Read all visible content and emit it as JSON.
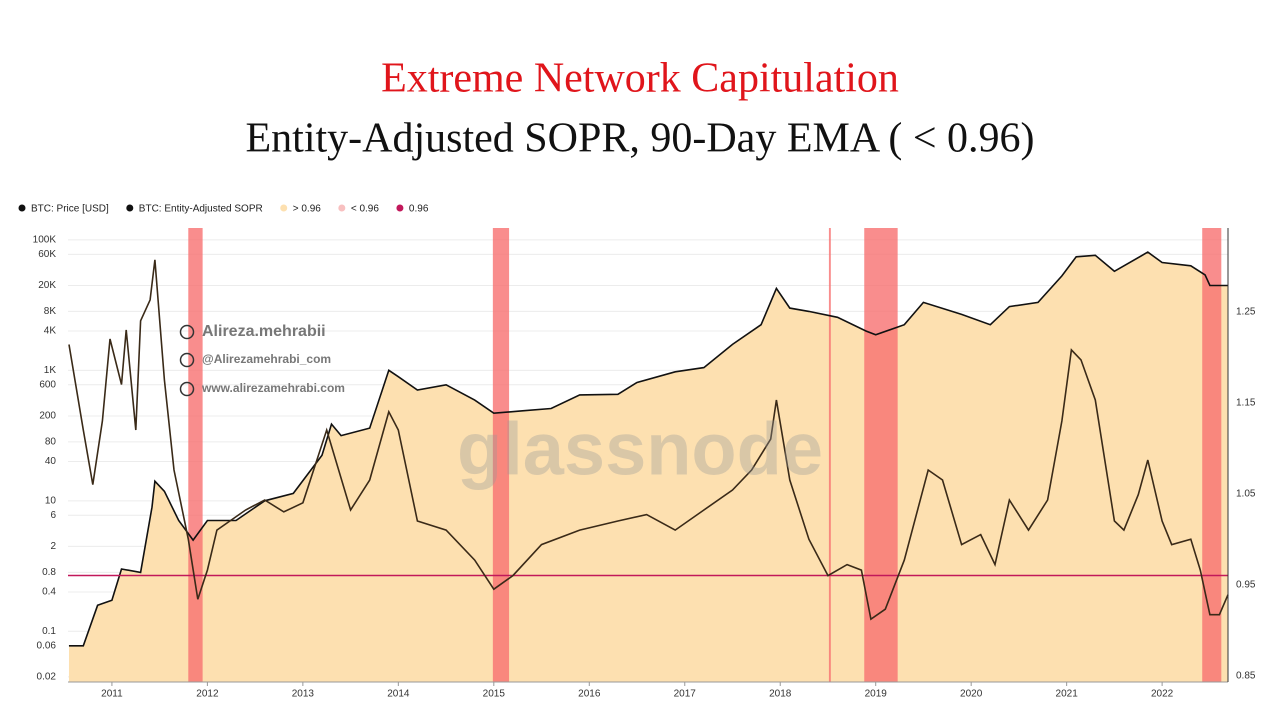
{
  "chart_data": {
    "type": "line",
    "title": "Extreme Network Capitulation",
    "subtitle": "Entity-Adjusted SOPR, 90-Day EMA ( < 0.96)",
    "legend": [
      "BTC: Price [USD]",
      "BTC: Entity-Adjusted SOPR",
      "> 0.96",
      "< 0.96",
      "0.96"
    ],
    "legend_colors": [
      "#111111",
      "#111111",
      "#fde0b0",
      "#f8c0c0",
      "#c2185b"
    ],
    "watermarks": [
      "Alireza.mehrabii",
      "@Alirezamehrabi_com",
      "www.alirezamehrabi.com",
      "glassnode"
    ],
    "log_y": true,
    "xlim": [
      2010.54,
      2022.69
    ],
    "xticks": [
      2011,
      2012,
      2013,
      2014,
      2015,
      2016,
      2017,
      2018,
      2019,
      2020,
      2021,
      2022
    ],
    "ylim": [
      0.0167,
      152000
    ],
    "yticks": [
      0.02,
      0.06,
      0.1,
      0.4,
      0.8,
      2,
      6,
      10,
      40,
      80,
      200,
      600,
      {
        "value": 1000,
        "label": "1K"
      },
      {
        "value": 4000,
        "label": "4K"
      },
      {
        "value": 8000,
        "label": "8K"
      },
      {
        "value": 20000,
        "label": "20K"
      },
      {
        "value": 60000,
        "label": "60K"
      },
      {
        "value": 100000,
        "label": "100K"
      }
    ],
    "y2lim": [
      0.843,
      1.342
    ],
    "y2ticks": [
      0.85,
      0.95,
      1.05,
      1.15,
      1.25
    ],
    "threshold": 0.96,
    "threshold_color": "#c2185b",
    "area_color": "#fde0b0",
    "band_color": "#f77070",
    "bands": [
      [
        2011.8,
        2011.95
      ],
      [
        2014.99,
        2015.16
      ],
      [
        2018.51,
        2018.53
      ],
      [
        2018.88,
        2019.23
      ],
      [
        2022.42,
        2022.62
      ]
    ],
    "series": [
      {
        "name": "BTC: Price [USD]",
        "color": "#111111",
        "x": [
          2010.55,
          2010.7,
          2010.85,
          2011.0,
          2011.1,
          2011.3,
          2011.42,
          2011.45,
          2011.55,
          2011.7,
          2011.85,
          2012.0,
          2012.3,
          2012.6,
          2012.9,
          2013.2,
          2013.3,
          2013.4,
          2013.7,
          2013.9,
          2014.0,
          2014.2,
          2014.5,
          2014.8,
          2015.0,
          2015.3,
          2015.6,
          2015.9,
          2016.3,
          2016.5,
          2016.9,
          2017.2,
          2017.5,
          2017.8,
          2017.96,
          2018.1,
          2018.3,
          2018.6,
          2018.9,
          2019.0,
          2019.3,
          2019.5,
          2019.9,
          2020.2,
          2020.4,
          2020.7,
          2020.95,
          2021.1,
          2021.3,
          2021.5,
          2021.85,
          2022.0,
          2022.3,
          2022.45,
          2022.5,
          2022.69
        ],
        "values": [
          0.06,
          0.06,
          0.25,
          0.3,
          0.9,
          0.8,
          8,
          20,
          14,
          5,
          2.5,
          5,
          5,
          10,
          13,
          50,
          150,
          100,
          130,
          1000,
          800,
          500,
          600,
          350,
          220,
          240,
          260,
          420,
          430,
          650,
          950,
          1100,
          2500,
          5000,
          18000,
          9000,
          8000,
          6500,
          4000,
          3500,
          5000,
          11000,
          7200,
          5000,
          9500,
          11000,
          28000,
          55000,
          58000,
          33000,
          65000,
          45000,
          40000,
          29000,
          20000,
          20000
        ]
      },
      {
        "name": "BTC: Entity-Adjusted SOPR",
        "color": "#3a2a18",
        "axis": "y2",
        "x": [
          2010.55,
          2010.7,
          2010.8,
          2010.9,
          2010.98,
          2011.1,
          2011.15,
          2011.25,
          2011.3,
          2011.4,
          2011.45,
          2011.55,
          2011.65,
          2011.8,
          2011.9,
          2012.0,
          2012.1,
          2012.4,
          2012.6,
          2012.8,
          2013.0,
          2013.25,
          2013.5,
          2013.7,
          2013.9,
          2014.0,
          2014.2,
          2014.5,
          2014.8,
          2015.0,
          2015.2,
          2015.5,
          2015.9,
          2016.3,
          2016.6,
          2016.9,
          2017.2,
          2017.5,
          2017.7,
          2017.9,
          2017.96,
          2018.1,
          2018.3,
          2018.5,
          2018.7,
          2018.85,
          2018.95,
          2019.1,
          2019.3,
          2019.55,
          2019.7,
          2019.9,
          2020.1,
          2020.25,
          2020.4,
          2020.6,
          2020.8,
          2020.95,
          2021.05,
          2021.15,
          2021.3,
          2021.5,
          2021.6,
          2021.75,
          2021.85,
          2022.0,
          2022.1,
          2022.3,
          2022.4,
          2022.5,
          2022.6,
          2022.69
        ],
        "values": [
          1.214,
          1.12,
          1.06,
          1.13,
          1.22,
          1.17,
          1.23,
          1.12,
          1.24,
          1.263,
          1.307,
          1.175,
          1.076,
          1.0,
          0.934,
          0.966,
          1.01,
          1.032,
          1.043,
          1.03,
          1.04,
          1.12,
          1.032,
          1.065,
          1.14,
          1.12,
          1.02,
          1.01,
          0.977,
          0.945,
          0.96,
          0.994,
          1.01,
          1.02,
          1.027,
          1.01,
          1.032,
          1.054,
          1.076,
          1.11,
          1.153,
          1.065,
          1.0,
          0.96,
          0.972,
          0.966,
          0.912,
          0.923,
          0.977,
          1.076,
          1.065,
          0.994,
          1.005,
          0.972,
          1.043,
          1.01,
          1.043,
          1.13,
          1.208,
          1.197,
          1.153,
          1.02,
          1.01,
          1.049,
          1.087,
          1.02,
          0.994,
          1.0,
          0.966,
          0.917,
          0.917,
          0.939
        ]
      }
    ]
  }
}
